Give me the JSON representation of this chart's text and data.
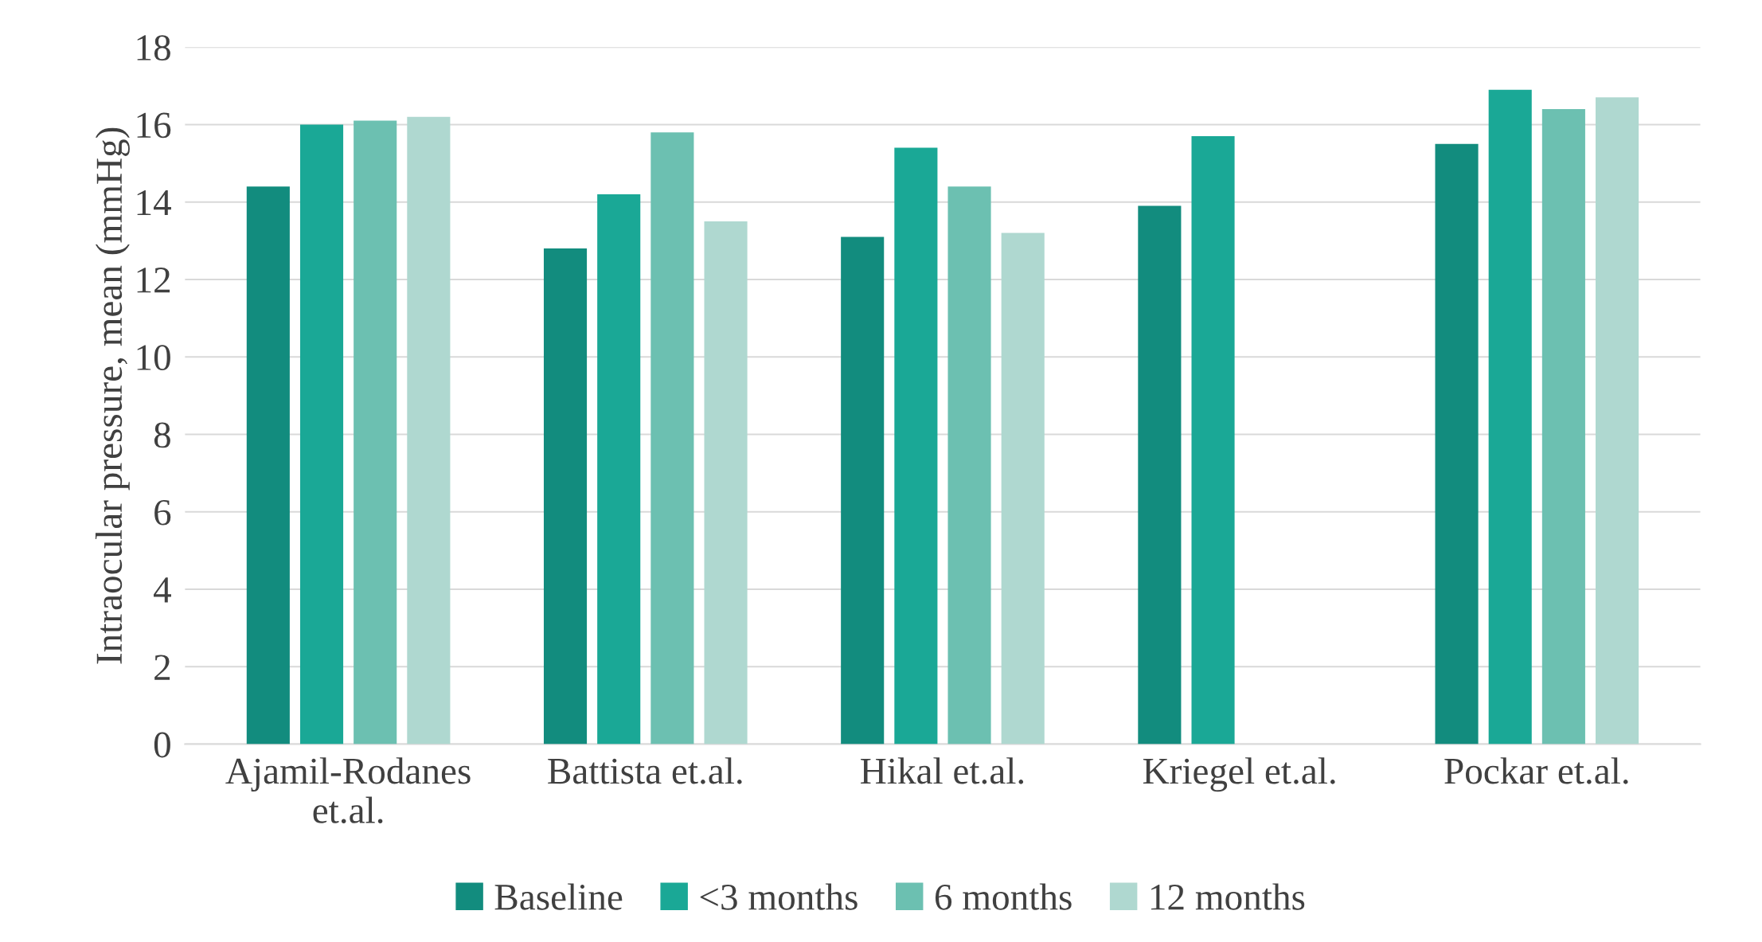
{
  "chart_data": {
    "type": "bar",
    "ylabel": "Intraocular pressure, mean (mmHg)",
    "categories": [
      "Ajamil-Rodanes\net.al.",
      "Battista et.al.",
      "Hikal et.al.",
      "Kriegel et.al.",
      "Pockar et.al."
    ],
    "series": [
      {
        "name": "Baseline",
        "color": "#128c7e",
        "values": [
          14.4,
          12.8,
          13.1,
          13.9,
          15.5
        ]
      },
      {
        "name": "<3 months",
        "color": "#1aa896",
        "values": [
          16.0,
          14.2,
          15.4,
          15.7,
          16.9
        ]
      },
      {
        "name": "6 months",
        "color": "#6cc0b1",
        "values": [
          16.1,
          15.8,
          14.4,
          null,
          16.4
        ]
      },
      {
        "name": "12 months",
        "color": "#afd8d0",
        "values": [
          16.2,
          13.5,
          13.2,
          null,
          16.7
        ]
      }
    ],
    "ylim": [
      0,
      18
    ],
    "yticks": [
      0,
      2,
      4,
      6,
      8,
      10,
      12,
      14,
      16,
      18
    ],
    "grid": "y",
    "legend": "bottom"
  }
}
